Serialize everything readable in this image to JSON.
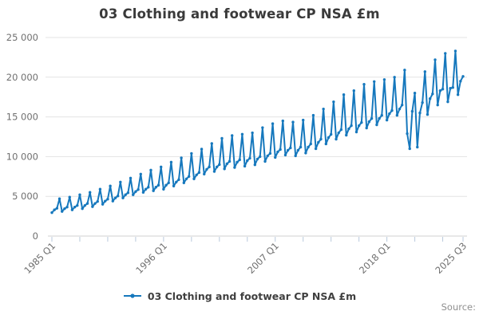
{
  "chart": {
    "title": "03 Clothing and footwear CP NSA £m"
  },
  "legend": {
    "label": "03 Clothing and footwear CP NSA £m"
  },
  "footer": {
    "source_label": "Source:"
  },
  "colors": {
    "line": "#1678bd",
    "grid": "#e3e3e3",
    "axis_line": "#d2d2d2",
    "tick": "#b9c9dc",
    "axis_text": "#6f6f6f",
    "title_text": "#3a3a3a",
    "legend_text": "#3f3f3f",
    "source_text": "#8f8f8f"
  },
  "chart_data": {
    "type": "line",
    "title": "03 Clothing and footwear CP NSA £m",
    "ylabel": "",
    "xlabel": "",
    "unit": "£m",
    "frequency": "quarterly",
    "x_start": "1985 Q1",
    "x_end": "2025 Q3",
    "grid": "horizontal",
    "legend_position": "bottom",
    "ylim": [
      0,
      25000
    ],
    "y_ticks": [
      0,
      5000,
      10000,
      15000,
      20000,
      25000
    ],
    "y_tick_labels": [
      "0",
      "5 000",
      "10 000",
      "15 000",
      "20 000",
      "25 000"
    ],
    "x_tick_labels": [
      "1985 Q1",
      "1996 Q1",
      "2007 Q1",
      "2018 Q1",
      "2025 Q3"
    ],
    "x_tick_quarter_indices": [
      0,
      44,
      88,
      132,
      162
    ],
    "x_minor_tick_indices": [
      0,
      11,
      22,
      33,
      44,
      55,
      66,
      77,
      88,
      99,
      110,
      121,
      132,
      143,
      154,
      162
    ],
    "series": [
      {
        "name": "03 Clothing and footwear CP NSA £m",
        "color": "#1678bd",
        "values": [
          2950,
          3300,
          3500,
          4700,
          3100,
          3450,
          3650,
          4900,
          3300,
          3650,
          3850,
          5200,
          3450,
          3850,
          4100,
          5500,
          3700,
          4100,
          4350,
          5900,
          4000,
          4400,
          4650,
          6300,
          4400,
          4800,
          5050,
          6800,
          4800,
          5200,
          5450,
          7300,
          5200,
          5600,
          5850,
          7800,
          5500,
          5900,
          6150,
          8300,
          5700,
          6150,
          6400,
          8700,
          5900,
          6400,
          6700,
          9300,
          6300,
          6800,
          7100,
          9850,
          6700,
          7200,
          7500,
          10400,
          7200,
          7700,
          8000,
          10950,
          7800,
          8400,
          8700,
          11650,
          8130,
          8700,
          9000,
          12300,
          8460,
          9100,
          9400,
          12650,
          8630,
          9300,
          9600,
          12820,
          8800,
          9500,
          9800,
          13000,
          8970,
          9700,
          10000,
          13650,
          9400,
          10100,
          10400,
          14150,
          9900,
          10600,
          10900,
          14500,
          10200,
          10800,
          11100,
          14350,
          10100,
          10800,
          11200,
          14600,
          10450,
          11200,
          11600,
          15200,
          11000,
          11800,
          12200,
          16000,
          11600,
          12400,
          12800,
          16900,
          12200,
          13000,
          13400,
          17800,
          12700,
          13500,
          13900,
          18300,
          13100,
          13900,
          14300,
          19100,
          13600,
          14400,
          14800,
          19450,
          14000,
          14800,
          15200,
          19700,
          14600,
          15400,
          15800,
          20000,
          15200,
          16000,
          16500,
          20900,
          12900,
          11000,
          15700,
          18000,
          11200,
          15500,
          16800,
          20700,
          15300,
          17300,
          17900,
          22200,
          16500,
          18300,
          18500,
          23000,
          16900,
          18600,
          18700,
          23300,
          17800,
          19500,
          20100
        ]
      }
    ]
  }
}
